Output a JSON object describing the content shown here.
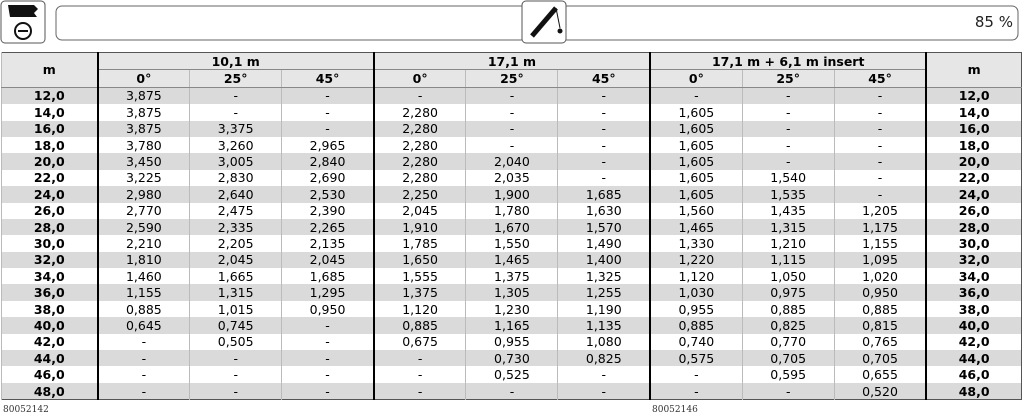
{
  "status": {
    "percent": "85 %"
  },
  "table": {
    "unit": "m",
    "groups": [
      {
        "name": "10,1 m",
        "angles": [
          "0°",
          "25°",
          "45°"
        ]
      },
      {
        "name": "17,1 m",
        "angles": [
          "0°",
          "25°",
          "45°"
        ]
      },
      {
        "name": "17,1 m + 6,1 m insert",
        "angles": [
          "0°",
          "25°",
          "45°"
        ]
      }
    ],
    "rows": [
      {
        "label": "12,0",
        "cells": [
          "3,875",
          "-",
          "-",
          "-",
          "-",
          "-",
          "-",
          "-",
          "-"
        ]
      },
      {
        "label": "14,0",
        "cells": [
          "3,875",
          "-",
          "-",
          "2,280",
          "-",
          "-",
          "1,605",
          "-",
          "-"
        ]
      },
      {
        "label": "16,0",
        "cells": [
          "3,875",
          "3,375",
          "-",
          "2,280",
          "-",
          "-",
          "1,605",
          "-",
          "-"
        ]
      },
      {
        "label": "18,0",
        "cells": [
          "3,780",
          "3,260",
          "2,965",
          "2,280",
          "-",
          "-",
          "1,605",
          "-",
          "-"
        ]
      },
      {
        "label": "20,0",
        "cells": [
          "3,450",
          "3,005",
          "2,840",
          "2,280",
          "2,040",
          "-",
          "1,605",
          "-",
          "-"
        ]
      },
      {
        "label": "22,0",
        "cells": [
          "3,225",
          "2,830",
          "2,690",
          "2,280",
          "2,035",
          "-",
          "1,605",
          "1,540",
          "-"
        ]
      },
      {
        "label": "24,0",
        "cells": [
          "2,980",
          "2,640",
          "2,530",
          "2,250",
          "1,900",
          "1,685",
          "1,605",
          "1,535",
          "-"
        ]
      },
      {
        "label": "26,0",
        "cells": [
          "2,770",
          "2,475",
          "2,390",
          "2,045",
          "1,780",
          "1,630",
          "1,560",
          "1,435",
          "1,205"
        ]
      },
      {
        "label": "28,0",
        "cells": [
          "2,590",
          "2,335",
          "2,265",
          "1,910",
          "1,670",
          "1,570",
          "1,465",
          "1,315",
          "1,175"
        ]
      },
      {
        "label": "30,0",
        "cells": [
          "2,210",
          "2,205",
          "2,135",
          "1,785",
          "1,550",
          "1,490",
          "1,330",
          "1,210",
          "1,155"
        ]
      },
      {
        "label": "32,0",
        "cells": [
          "1,810",
          "2,045",
          "2,045",
          "1,650",
          "1,465",
          "1,400",
          "1,220",
          "1,115",
          "1,095"
        ]
      },
      {
        "label": "34,0",
        "cells": [
          "1,460",
          "1,665",
          "1,685",
          "1,555",
          "1,375",
          "1,325",
          "1,120",
          "1,050",
          "1,020"
        ]
      },
      {
        "label": "36,0",
        "cells": [
          "1,155",
          "1,315",
          "1,295",
          "1,375",
          "1,305",
          "1,255",
          "1,030",
          "0,975",
          "0,950"
        ]
      },
      {
        "label": "38,0",
        "cells": [
          "0,885",
          "1,015",
          "0,950",
          "1,120",
          "1,230",
          "1,190",
          "0,955",
          "0,885",
          "0,885"
        ]
      },
      {
        "label": "40,0",
        "cells": [
          "0,645",
          "0,745",
          "-",
          "0,885",
          "1,165",
          "1,135",
          "0,885",
          "0,825",
          "0,815"
        ]
      },
      {
        "label": "42,0",
        "cells": [
          "-",
          "0,505",
          "-",
          "0,675",
          "0,955",
          "1,080",
          "0,740",
          "0,770",
          "0,765"
        ]
      },
      {
        "label": "44,0",
        "cells": [
          "-",
          "-",
          "-",
          "-",
          "0,730",
          "0,825",
          "0,575",
          "0,705",
          "0,705"
        ]
      },
      {
        "label": "46,0",
        "cells": [
          "-",
          "-",
          "-",
          "-",
          "0,525",
          "-",
          "-",
          "0,595",
          "0,655"
        ]
      },
      {
        "label": "48,0",
        "cells": [
          "-",
          "-",
          "-",
          "-",
          "-",
          "-",
          "-",
          "-",
          "0,520"
        ]
      }
    ]
  },
  "footer": {
    "left_code": "80052142",
    "right_code": "80052146"
  }
}
